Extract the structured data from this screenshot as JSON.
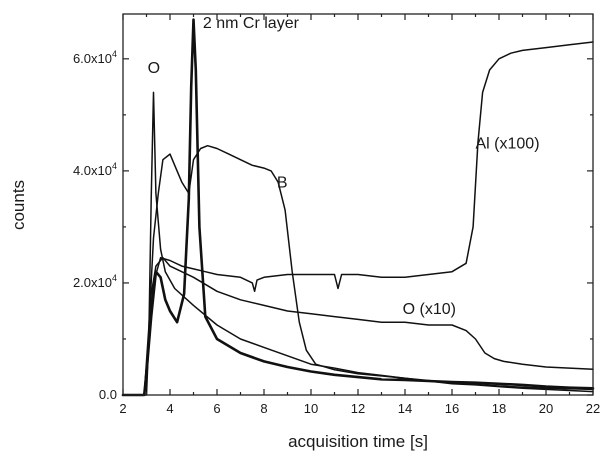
{
  "chart_data": {
    "type": "line",
    "title": "",
    "xlabel": "acquisition time [s]",
    "ylabel": "counts",
    "xlim": [
      2,
      22
    ],
    "ylim": [
      0,
      68000
    ],
    "x_ticks": [
      2,
      4,
      6,
      8,
      10,
      12,
      14,
      16,
      18,
      20,
      22
    ],
    "x_tick_labels": [
      "2",
      "4",
      "6",
      "8",
      "10",
      "12",
      "14",
      "16",
      "18",
      "20",
      "22"
    ],
    "y_ticks": [
      0,
      20000,
      40000,
      60000
    ],
    "y_tick_labels": [
      {
        "mantissa": "0.0",
        "exponent": ""
      },
      {
        "mantissa": "2.0x10",
        "exponent": "4"
      },
      {
        "mantissa": "4.0x10",
        "exponent": "4"
      },
      {
        "mantissa": "6.0x10",
        "exponent": "4"
      }
    ],
    "grid": false,
    "annotations": [
      {
        "text": "2 nm Cr layer",
        "x": 5.4,
        "y": 65500
      },
      {
        "text": "O",
        "x": 3.05,
        "y": 57500
      },
      {
        "text": "Al (x100)",
        "x": 17.0,
        "y": 44000
      },
      {
        "text": "B",
        "x": 8.55,
        "y": 37000
      },
      {
        "text": "O (x10)",
        "x": 13.9,
        "y": 14500
      }
    ],
    "series": [
      {
        "name": "Cr",
        "stroke_width": 2.6,
        "x": [
          2.0,
          2.9,
          3.0,
          3.2,
          3.4,
          3.6,
          3.8,
          4.0,
          4.3,
          4.6,
          4.8,
          4.9,
          5.0,
          5.1,
          5.25,
          5.5,
          6.0,
          7.0,
          8.0,
          9.0,
          10.0,
          11.0,
          12.0,
          13.0,
          14.0,
          15.0,
          16.0,
          17.0,
          18.0,
          19.0,
          20.0,
          21.0,
          22.0
        ],
        "y": [
          0,
          0,
          4000,
          14000,
          22000,
          21000,
          17000,
          15000,
          13000,
          18000,
          35000,
          55000,
          67000,
          58000,
          30000,
          14000,
          10000,
          7500,
          6000,
          5000,
          4200,
          3600,
          3200,
          2800,
          2700,
          2500,
          2300,
          2200,
          2000,
          1800,
          1500,
          1300,
          1200
        ]
      },
      {
        "name": "O",
        "stroke_width": 1.5,
        "x": [
          2.0,
          3.0,
          3.1,
          3.2,
          3.3,
          3.4,
          3.6,
          3.8,
          4.2,
          5.0,
          6.0,
          7.0,
          8.0,
          9.0,
          10.0,
          11.0,
          12.0,
          13.0,
          14.0,
          15.0,
          16.0,
          17.0,
          18.0,
          19.0,
          20.0,
          21.0,
          22.0
        ],
        "y": [
          0,
          0,
          10000,
          35000,
          54000,
          36000,
          26000,
          22000,
          19000,
          16000,
          12500,
          10000,
          8500,
          7000,
          5500,
          4800,
          4000,
          3500,
          3000,
          2500,
          2000,
          1800,
          1500,
          1200,
          1000,
          800,
          600
        ]
      },
      {
        "name": "B",
        "stroke_width": 1.5,
        "x": [
          2.0,
          2.9,
          3.1,
          3.3,
          3.5,
          3.7,
          4.0,
          4.2,
          4.5,
          4.8,
          5.0,
          5.3,
          5.6,
          6.0,
          6.5,
          7.0,
          7.5,
          8.0,
          8.3,
          8.6,
          8.9,
          9.2,
          9.5,
          9.8,
          10.2,
          11.0,
          12.0,
          14.0,
          16.0,
          18.0,
          20.0,
          22.0
        ],
        "y": [
          0,
          0,
          12000,
          28000,
          36000,
          42000,
          43000,
          41000,
          38000,
          36000,
          42000,
          44000,
          44500,
          44000,
          43000,
          42000,
          41000,
          40500,
          40000,
          38000,
          33000,
          22000,
          13000,
          8000,
          5500,
          4500,
          3800,
          3000,
          2200,
          1600,
          1200,
          1000
        ]
      },
      {
        "name": "Al (x100)",
        "stroke_width": 1.5,
        "x": [
          2.0,
          2.9,
          3.1,
          3.3,
          3.6,
          4.0,
          4.5,
          5.0,
          5.5,
          6.0,
          7.0,
          7.5,
          7.6,
          7.7,
          8.0,
          9.0,
          10.0,
          11.0,
          11.15,
          11.3,
          12.0,
          13.0,
          14.0,
          15.0,
          16.0,
          16.6,
          16.9,
          17.1,
          17.3,
          17.6,
          18.0,
          18.5,
          19.0,
          20.0,
          21.0,
          22.0
        ],
        "y": [
          0,
          0,
          10000,
          20000,
          24500,
          24000,
          23000,
          22500,
          22000,
          21500,
          21000,
          20000,
          18500,
          20500,
          21000,
          21500,
          21500,
          21500,
          19000,
          21500,
          21500,
          21000,
          21000,
          21500,
          22000,
          23500,
          30000,
          45000,
          54000,
          58000,
          60000,
          61000,
          61500,
          62000,
          62500,
          63000
        ]
      },
      {
        "name": "O (x10)",
        "stroke_width": 1.5,
        "x": [
          2.0,
          2.9,
          3.05,
          3.2,
          3.4,
          3.7,
          4.0,
          5.0,
          6.0,
          7.0,
          8.0,
          9.0,
          10.0,
          11.0,
          12.0,
          13.0,
          14.0,
          15.0,
          16.0,
          16.6,
          17.0,
          17.4,
          17.8,
          18.2,
          19.0,
          20.0,
          21.0,
          22.0
        ],
        "y": [
          0,
          0,
          8000,
          18000,
          23000,
          24500,
          23000,
          21000,
          18500,
          17000,
          16000,
          15000,
          14500,
          14000,
          13500,
          13000,
          13000,
          12500,
          12500,
          11500,
          10000,
          7500,
          6500,
          6000,
          5500,
          5000,
          4800,
          4600
        ]
      }
    ]
  }
}
